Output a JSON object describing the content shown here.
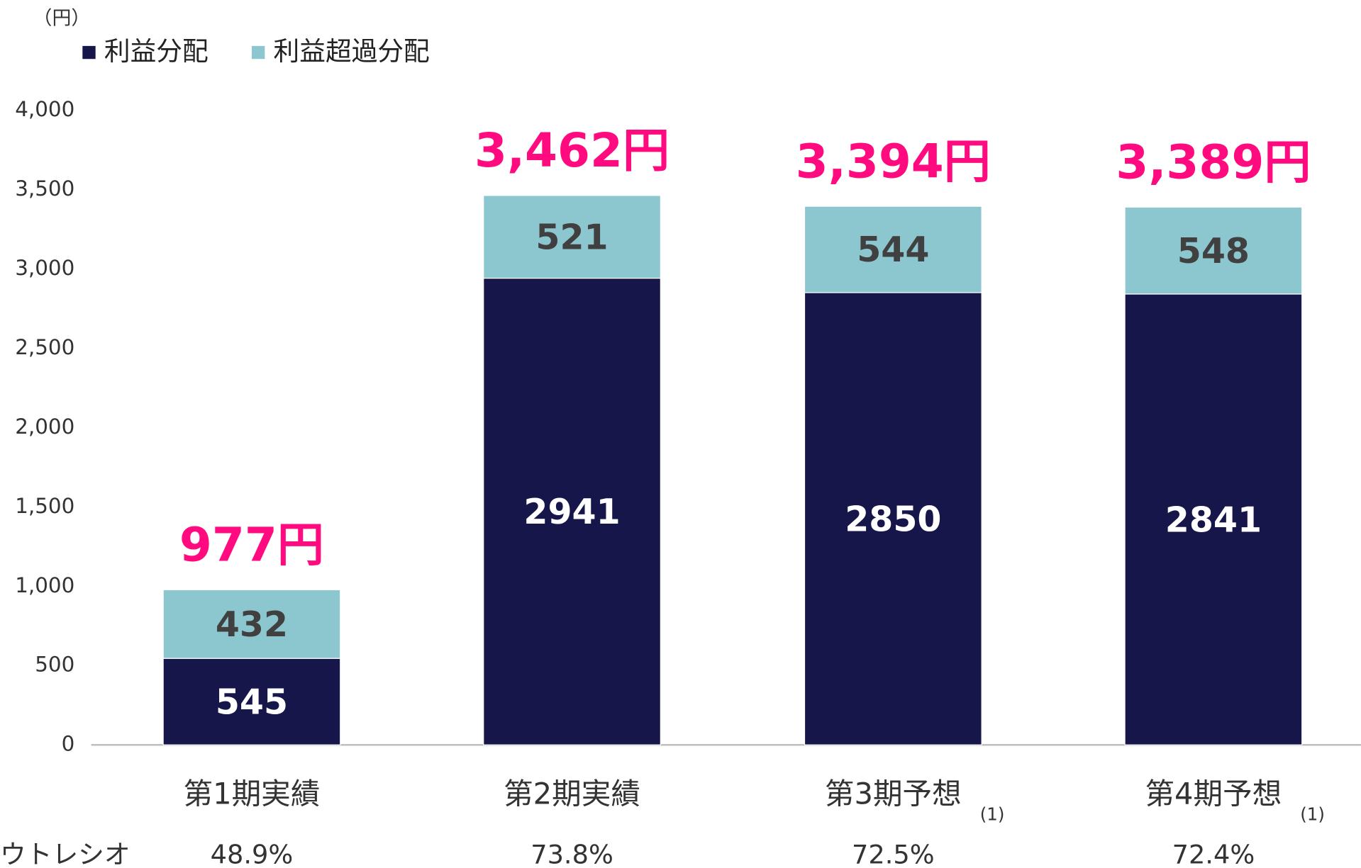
{
  "chart_data": {
    "type": "stacked_bar",
    "y_unit": "（円）",
    "categories": [
      "第1期実績",
      "第2期実績",
      "第3期予想",
      "第4期予想"
    ],
    "footnotes": [
      null,
      null,
      "(1)",
      "(1)"
    ],
    "series": [
      {
        "name": "利益分配",
        "color": "#16164a",
        "label_color": "#ffffff",
        "values": [
          545,
          2941,
          2850,
          2841
        ]
      },
      {
        "name": "利益超過分配",
        "color": "#8cc6cf",
        "label_color": "#404040",
        "values": [
          432,
          521,
          544,
          548
        ]
      }
    ],
    "totals": {
      "color": "#ff0a7f",
      "values": [
        977,
        3462,
        3394,
        3389
      ],
      "value_labels": [
        "977円",
        "3,462円",
        "3,394円",
        "3,389円"
      ]
    },
    "ratio_row": {
      "label": "ウトレシオ",
      "values": [
        "48.9%",
        "73.8%",
        "72.5%",
        "72.4%"
      ]
    },
    "ylim": [
      0,
      4000
    ],
    "yticks": [
      0,
      500,
      {
        "value": 1000,
        "label": "1,000"
      },
      {
        "value": 1500,
        "label": "1,500"
      },
      {
        "value": 2000,
        "label": "2,000"
      },
      {
        "value": 2500,
        "label": "2,500"
      },
      {
        "value": 3000,
        "label": "3,000"
      },
      {
        "value": 3500,
        "label": "3,500"
      },
      {
        "value": 4000,
        "label": "4,000"
      }
    ],
    "grid": false
  }
}
